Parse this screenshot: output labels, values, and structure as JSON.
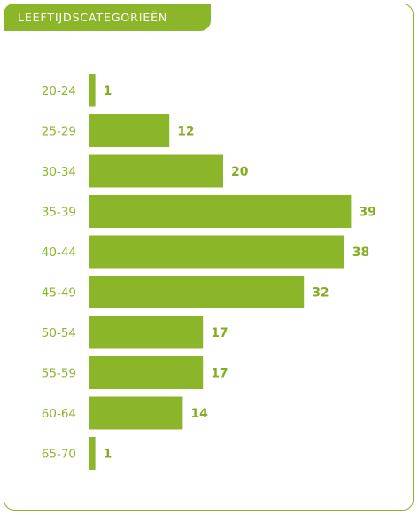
{
  "header": {
    "title": "LEEFTIJDSCATEGORIEËN"
  },
  "colors": {
    "accent": "#8cb62a",
    "value_text": "#86ad22",
    "background": "#ffffff"
  },
  "chart_data": {
    "type": "bar",
    "orientation": "horizontal",
    "title": "LEEFTIJDSCATEGORIEËN",
    "categories": [
      "20-24",
      "25-29",
      "30-34",
      "35-39",
      "40-44",
      "45-49",
      "50-54",
      "55-59",
      "60-64",
      "65-70"
    ],
    "values": [
      1,
      12,
      20,
      39,
      38,
      32,
      17,
      17,
      14,
      1
    ],
    "xlabel": "",
    "ylabel": "",
    "xlim": [
      0,
      39
    ],
    "grid": false,
    "legend": "none",
    "data_labels": true
  }
}
